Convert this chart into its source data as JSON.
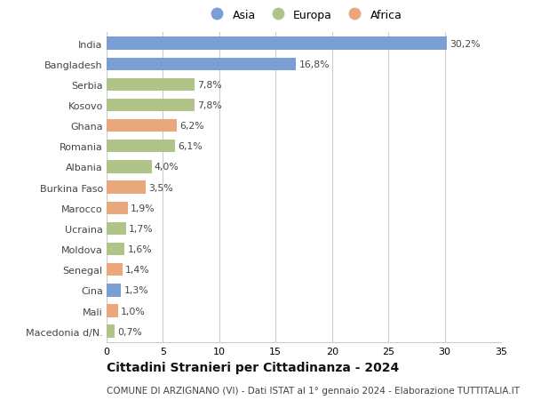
{
  "countries": [
    "India",
    "Bangladesh",
    "Serbia",
    "Kosovo",
    "Ghana",
    "Romania",
    "Albania",
    "Burkina Faso",
    "Marocco",
    "Ucraina",
    "Moldova",
    "Senegal",
    "Cina",
    "Mali",
    "Macedonia d/N."
  ],
  "values": [
    30.2,
    16.8,
    7.8,
    7.8,
    6.2,
    6.1,
    4.0,
    3.5,
    1.9,
    1.7,
    1.6,
    1.4,
    1.3,
    1.0,
    0.7
  ],
  "continents": [
    "Asia",
    "Asia",
    "Europa",
    "Europa",
    "Africa",
    "Europa",
    "Europa",
    "Africa",
    "Africa",
    "Europa",
    "Europa",
    "Africa",
    "Asia",
    "Africa",
    "Europa"
  ],
  "colors": {
    "Asia": "#7b9fd4",
    "Europa": "#b0c48a",
    "Africa": "#e8a87c"
  },
  "legend_labels": [
    "Asia",
    "Europa",
    "Africa"
  ],
  "xlim": [
    0,
    35
  ],
  "xticks": [
    0,
    5,
    10,
    15,
    20,
    25,
    30,
    35
  ],
  "title": "Cittadini Stranieri per Cittadinanza - 2024",
  "subtitle": "COMUNE DI ARZIGNANO (VI) - Dati ISTAT al 1° gennaio 2024 - Elaborazione TUTTITALIA.IT",
  "bg_color": "#ffffff",
  "grid_color": "#cccccc",
  "bar_height": 0.62,
  "label_fontsize": 7.8,
  "title_fontsize": 10,
  "subtitle_fontsize": 7.5,
  "tick_fontsize": 8,
  "legend_fontsize": 9
}
